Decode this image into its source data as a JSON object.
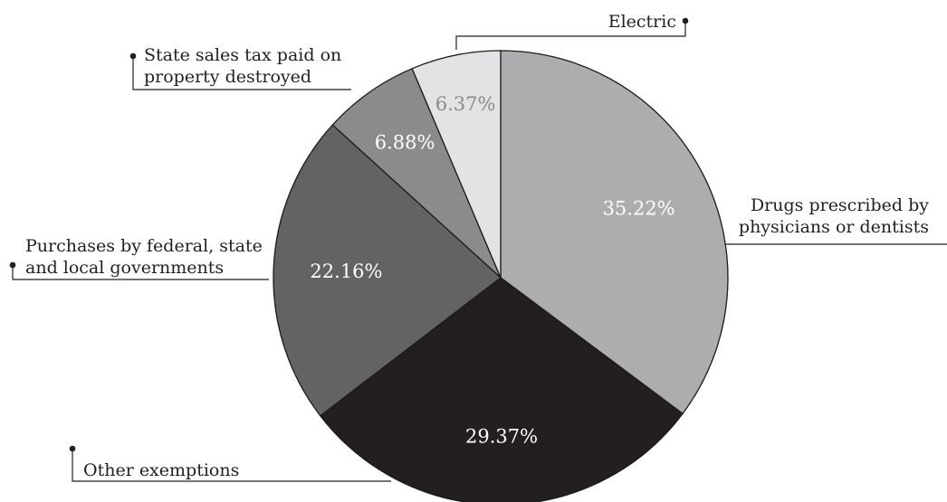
{
  "chart_data": {
    "type": "pie",
    "title": "",
    "start_angle_deg": 0,
    "direction": "clockwise",
    "slices": [
      {
        "label_lines": [
          "Drugs prescribed by",
          "physicians or dentists"
        ],
        "value": 35.22,
        "value_label": "35.22%",
        "color": "#adadaf",
        "value_color": "#ffffff"
      },
      {
        "label_lines": [
          "Other exemptions"
        ],
        "value": 29.37,
        "value_label": "29.37%",
        "color": "#231f20",
        "value_color": "#ffffff"
      },
      {
        "label_lines": [
          "Purchases by federal, state",
          "and local governments"
        ],
        "value": 22.16,
        "value_label": "22.16%",
        "color": "#636365",
        "value_color": "#ffffff"
      },
      {
        "label_lines": [
          "State sales tax paid on",
          "property destroyed"
        ],
        "value": 6.88,
        "value_label": "6.88%",
        "color": "#8b8b8d",
        "value_color": "#ffffff"
      },
      {
        "label_lines": [
          "Electric"
        ],
        "value": 6.37,
        "value_label": "6.37%",
        "color": "#e3e3e5",
        "value_color": "#8b8b8d"
      }
    ]
  }
}
